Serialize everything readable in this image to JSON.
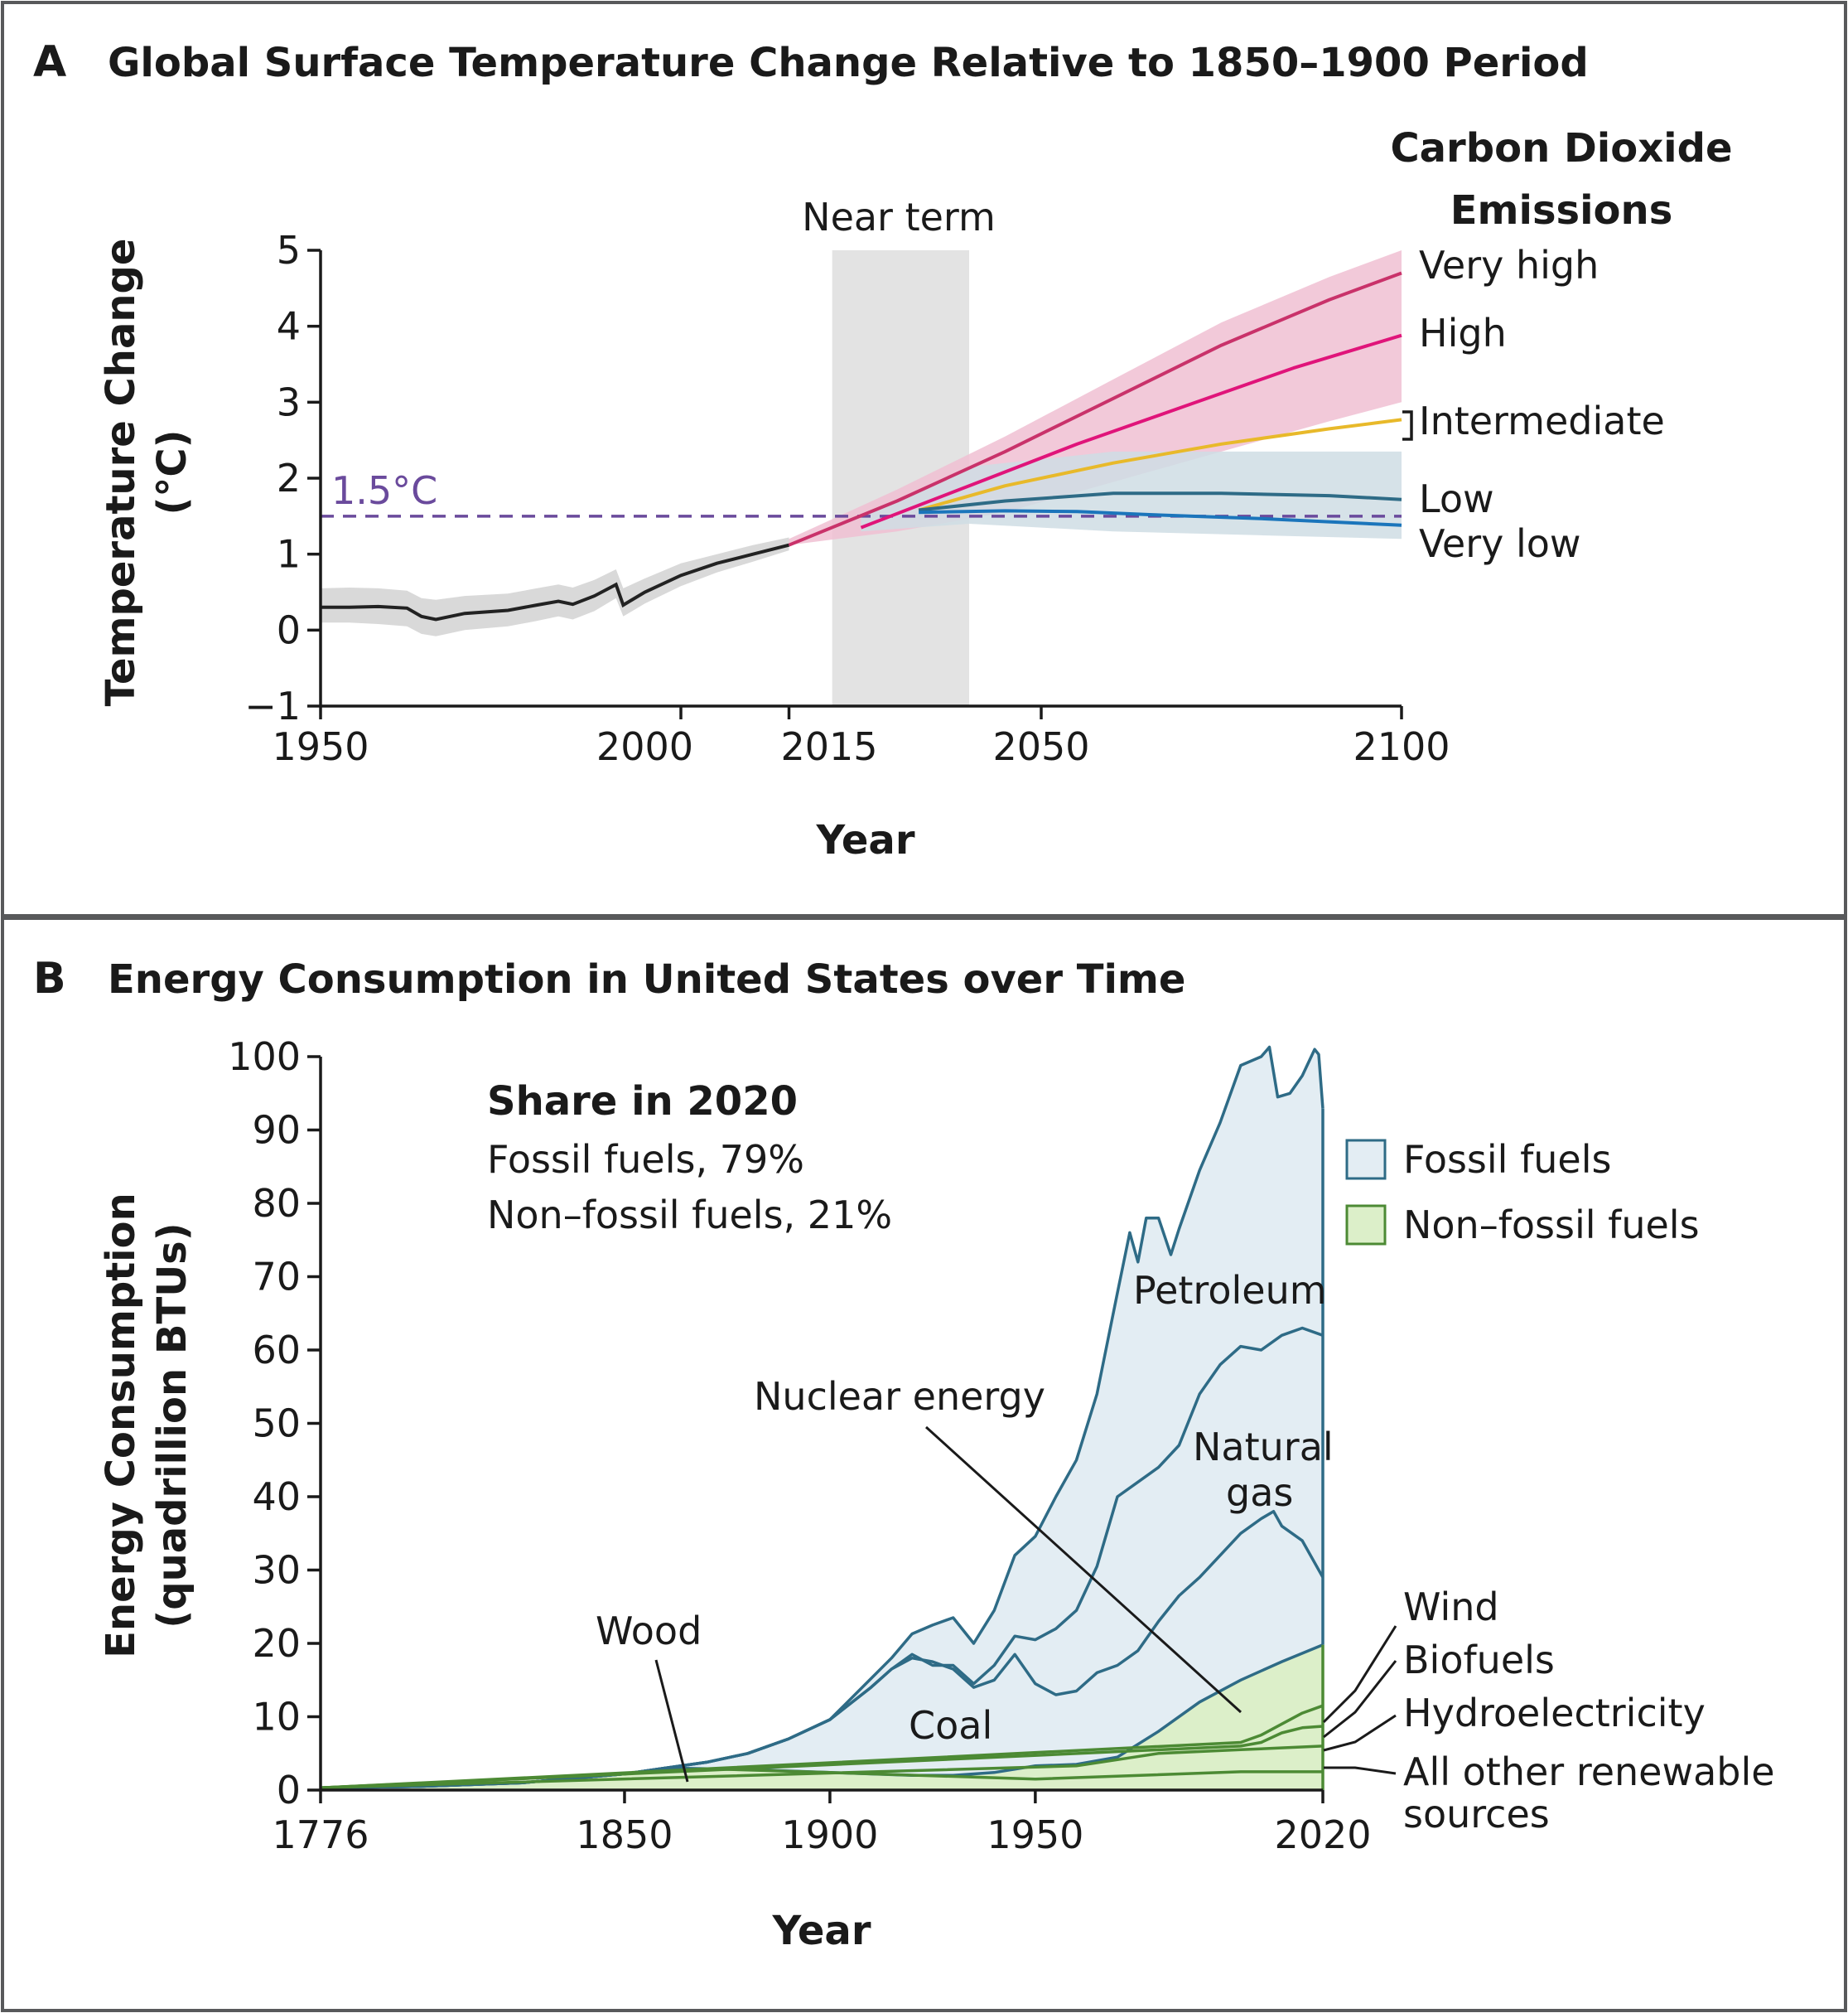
{
  "panels": {
    "a": {
      "letter": "A",
      "title": "Global Surface Temperature Change Relative to 1850–1900 Period"
    },
    "b": {
      "letter": "B",
      "title": "Energy Consumption in United States over Time"
    }
  },
  "colors": {
    "historical": "#222222",
    "historical_band": "#d9d9d9",
    "near_term_band": "#e3e3e3",
    "very_high": "#c9326a",
    "high": "#e0147a",
    "high_band": "#f0bfd2",
    "intermediate": "#e8b92a",
    "low": "#2e6b86",
    "low_band": "#cfdde4",
    "very_low": "#1b75bb",
    "threshold": "#6a4a9c",
    "fossil_fill": "#e3edf3",
    "fossil_line": "#2e6b86",
    "nonfossil_fill": "#dcefc9",
    "nonfossil_line": "#4c8a34"
  },
  "chart_data": [
    {
      "type": "line",
      "title": "Global Surface Temperature Change Relative to 1850–1900 Period",
      "xlabel": "Year",
      "ylabel_line1": "Temperature Change",
      "ylabel_line2": "(°C)",
      "xlim": [
        1950,
        2100
      ],
      "ylim": [
        -1,
        5
      ],
      "xticks": [
        1950,
        2000,
        2015,
        2050,
        2100
      ],
      "xtick_labels": [
        "1950",
        "2000",
        "2015",
        "2050",
        "2100"
      ],
      "yticks": [
        -1,
        0,
        1,
        2,
        3,
        4,
        5
      ],
      "ytick_labels": [
        "−1",
        "0",
        "1",
        "2",
        "3",
        "4",
        "5"
      ],
      "near_term": {
        "label": "Near term",
        "x": [
          2021,
          2040
        ]
      },
      "threshold": {
        "label": "1.5°C",
        "y": 1.5
      },
      "legend_title_line1": "Carbon Dioxide",
      "legend_title_line2": "Emissions",
      "historical": {
        "x": [
          1950,
          1954,
          1958,
          1962,
          1964,
          1966,
          1970,
          1976,
          1980,
          1983,
          1985,
          1988,
          1991,
          1992,
          1995,
          2000,
          2005,
          2010,
          2015
        ],
        "y": [
          0.3,
          0.3,
          0.31,
          0.29,
          0.18,
          0.14,
          0.22,
          0.26,
          0.33,
          0.38,
          0.34,
          0.45,
          0.6,
          0.33,
          0.5,
          0.72,
          0.88,
          1.0,
          1.12
        ],
        "band_low": [
          0.1,
          0.1,
          0.08,
          0.05,
          -0.05,
          -0.08,
          0.0,
          0.05,
          0.12,
          0.18,
          0.14,
          0.25,
          0.42,
          0.18,
          0.35,
          0.58,
          0.76,
          0.9,
          1.05
        ],
        "band_high": [
          0.55,
          0.56,
          0.55,
          0.52,
          0.42,
          0.4,
          0.45,
          0.48,
          0.55,
          0.6,
          0.56,
          0.66,
          0.8,
          0.55,
          0.68,
          0.88,
          1.0,
          1.12,
          1.22
        ]
      },
      "series": [
        {
          "name": "Very high",
          "x": [
            2015,
            2030,
            2045,
            2060,
            2075,
            2090,
            2100
          ],
          "y": [
            1.12,
            1.7,
            2.35,
            3.05,
            3.75,
            4.35,
            4.7
          ]
        },
        {
          "name": "High",
          "x": [
            2025,
            2040,
            2055,
            2070,
            2085,
            2100
          ],
          "y": [
            1.35,
            1.9,
            2.45,
            2.95,
            3.45,
            3.88
          ]
        },
        {
          "name": "Intermediate",
          "x": [
            2033,
            2045,
            2060,
            2075,
            2090,
            2100
          ],
          "y": [
            1.58,
            1.9,
            2.2,
            2.45,
            2.65,
            2.77
          ]
        },
        {
          "name": "Low",
          "x": [
            2033,
            2045,
            2060,
            2075,
            2090,
            2100
          ],
          "y": [
            1.58,
            1.7,
            1.8,
            1.8,
            1.77,
            1.72
          ]
        },
        {
          "name": "Very low",
          "x": [
            2033,
            2045,
            2055,
            2065,
            2080,
            2100
          ],
          "y": [
            1.55,
            1.57,
            1.56,
            1.52,
            1.47,
            1.38
          ]
        }
      ],
      "bands": [
        {
          "name": "High",
          "x": [
            2015,
            2030,
            2045,
            2060,
            2075,
            2090,
            2100
          ],
          "low": [
            1.12,
            1.3,
            1.55,
            1.95,
            2.35,
            2.75,
            3.0
          ],
          "high": [
            1.2,
            1.85,
            2.55,
            3.3,
            4.05,
            4.65,
            5.0
          ]
        },
        {
          "name": "Low",
          "x": [
            2025,
            2040,
            2060,
            2080,
            2100
          ],
          "low": [
            1.3,
            1.4,
            1.3,
            1.25,
            1.2
          ],
          "high": [
            1.5,
            2.15,
            2.35,
            2.35,
            2.35
          ]
        }
      ]
    },
    {
      "type": "area",
      "title": "Energy Consumption in United States over Time",
      "xlabel": "Year",
      "ylabel_line1": "Energy Consumption",
      "ylabel_line2": "(quadrillion BTUs)",
      "xlim": [
        1776,
        2020
      ],
      "ylim": [
        0,
        100
      ],
      "xticks": [
        1776,
        1850,
        1900,
        1950,
        2020
      ],
      "xtick_labels": [
        "1776",
        "1850",
        "1900",
        "1950",
        "2020"
      ],
      "yticks": [
        0,
        10,
        20,
        30,
        40,
        50,
        60,
        70,
        80,
        90,
        100
      ],
      "ytick_labels": [
        "0",
        "10",
        "20",
        "30",
        "40",
        "50",
        "60",
        "70",
        "80",
        "90",
        "100"
      ],
      "share_title": "Share in 2020",
      "share_fossil": "Fossil fuels, 79%",
      "share_nonfossil": "Non–fossil fuels, 21%",
      "legend": [
        "Fossil fuels",
        "Non–fossil fuels"
      ],
      "fossil_layers": [
        {
          "name": "Petroleum",
          "x": [
            1776,
            1800,
            1825,
            1850,
            1860,
            1870,
            1880,
            1890,
            1900,
            1910,
            1915,
            1920,
            1925,
            1930,
            1935,
            1940,
            1945,
            1950,
            1955,
            1960,
            1965,
            1970,
            1973,
            1975,
            1977,
            1980,
            1983,
            1985,
            1990,
            1995,
            2000,
            2005,
            2007,
            2009,
            2012,
            2015,
            2018,
            2019,
            2020
          ],
          "y": [
            0.3,
            0.5,
            1.0,
            2.2,
            3.0,
            3.8,
            5.0,
            7.0,
            9.6,
            15.2,
            18.0,
            21.3,
            22.5,
            23.5,
            20.0,
            24.5,
            32.0,
            34.6,
            40.0,
            45.0,
            54.0,
            67.8,
            76.0,
            72.0,
            78.0,
            78.0,
            73.0,
            76.5,
            84.5,
            91.0,
            98.8,
            100.0,
            101.3,
            94.5,
            95.0,
            97.4,
            101.0,
            100.3,
            92.9
          ]
        },
        {
          "name": "Natural gas",
          "x": [
            1776,
            1800,
            1825,
            1850,
            1860,
            1870,
            1880,
            1890,
            1900,
            1910,
            1915,
            1920,
            1925,
            1930,
            1935,
            1940,
            1945,
            1950,
            1955,
            1960,
            1965,
            1970,
            1975,
            1980,
            1985,
            1990,
            1995,
            2000,
            2005,
            2010,
            2015,
            2020
          ],
          "y": [
            0.3,
            0.5,
            1.0,
            2.2,
            3.0,
            3.8,
            5.0,
            7.0,
            9.6,
            14.0,
            16.5,
            18.5,
            17.0,
            17.0,
            14.5,
            17.0,
            21.0,
            20.5,
            22.0,
            24.5,
            30.5,
            40.0,
            42.0,
            44.0,
            47.0,
            54.0,
            58.0,
            60.5,
            60.0,
            62.0,
            63.0,
            62.0
          ]
        },
        {
          "name": "Coal",
          "x": [
            1776,
            1800,
            1825,
            1850,
            1860,
            1870,
            1880,
            1890,
            1900,
            1910,
            1915,
            1920,
            1925,
            1930,
            1935,
            1940,
            1945,
            1950,
            1955,
            1960,
            1965,
            1970,
            1975,
            1980,
            1985,
            1990,
            1995,
            2000,
            2005,
            2008,
            2010,
            2015,
            2020
          ],
          "y": [
            0.3,
            0.5,
            1.0,
            2.2,
            3.0,
            3.8,
            5.0,
            7.0,
            9.6,
            14.0,
            16.5,
            18.0,
            17.5,
            16.5,
            14.0,
            15.0,
            18.5,
            14.5,
            13.0,
            13.5,
            16.0,
            17.0,
            19.0,
            23.0,
            26.5,
            29.0,
            32.0,
            35.0,
            37.0,
            38.0,
            36.0,
            34.0,
            29.0
          ]
        }
      ],
      "fossil_base": {
        "x": [
          1776,
          1800,
          1825,
          1850,
          1860,
          1870,
          1880,
          1890,
          1900,
          1910,
          1920,
          1930,
          1940,
          1950,
          1960,
          1970,
          1980,
          1990,
          2000,
          2010,
          2020
        ],
        "y": [
          0.3,
          0.5,
          1.0,
          2.2,
          3.0,
          2.9,
          2.8,
          2.6,
          2.4,
          2.2,
          2.0,
          2.0,
          2.4,
          3.3,
          3.5,
          4.5,
          8.0,
          12.0,
          15.0,
          17.5,
          19.8
        ]
      },
      "nonfossil_layers": [
        {
          "name": "Nuclear energy",
          "x": [
            1776,
            1960,
            1970,
            1980,
            1990,
            2000,
            2010,
            2020
          ],
          "y": [
            0.3,
            3.5,
            4.5,
            8.0,
            12.0,
            15.0,
            17.5,
            19.8
          ]
        },
        {
          "name": "Wind",
          "x": [
            1776,
            2000,
            2005,
            2010,
            2015,
            2020
          ],
          "y": [
            0.3,
            6.5,
            7.5,
            9.0,
            10.5,
            11.5
          ]
        },
        {
          "name": "Biofuels",
          "x": [
            1776,
            2000,
            2005,
            2010,
            2015,
            2020
          ],
          "y": [
            0.3,
            6.0,
            6.5,
            7.8,
            8.5,
            8.7
          ]
        },
        {
          "name": "Hydroelectricity",
          "x": [
            1776,
            1960,
            1980,
            2000,
            2020
          ],
          "y": [
            0.3,
            3.3,
            5.0,
            5.5,
            6.0
          ]
        },
        {
          "name": "All other renewable sources",
          "x": [
            1776,
            1850,
            1870,
            1900,
            1950,
            2000,
            2020
          ],
          "y": [
            0.3,
            2.2,
            2.9,
            2.4,
            1.5,
            2.5,
            2.5
          ]
        }
      ],
      "labels": {
        "petroleum": "Petroleum",
        "natural_gas_line1": "Natural",
        "natural_gas_line2": "gas",
        "coal": "Coal",
        "wood": "Wood",
        "nuclear": "Nuclear energy",
        "wind": "Wind",
        "biofuels": "Biofuels",
        "hydro": "Hydroelectricity",
        "other_line1": "All other renewable",
        "other_line2": "sources"
      }
    }
  ]
}
